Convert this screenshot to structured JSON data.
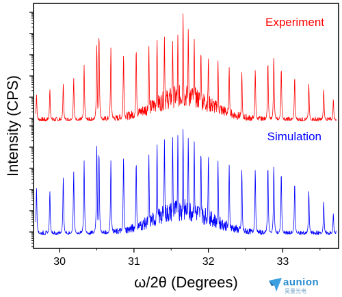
{
  "chart_data": {
    "type": "line",
    "xlabel": "ω/2θ (Degrees)",
    "ylabel": "Intensity (CPS)",
    "xlim": [
      29.65,
      33.75
    ],
    "x_ticks": [
      30,
      31,
      32,
      33
    ],
    "x_tick_labels": [
      "30",
      "31",
      "32",
      "33"
    ],
    "y_scale": "log",
    "y_tick_labels_shown": false,
    "grid": false,
    "legend": "inline labels at top-right of each trace",
    "satellite_peaks_x": [
      29.69,
      29.87,
      30.05,
      30.19,
      30.33,
      30.5,
      30.53,
      30.69,
      30.86,
      31.03,
      31.2,
      31.31,
      31.41,
      31.52,
      31.59,
      31.66,
      31.73,
      31.81,
      31.9,
      32.0,
      32.13,
      32.28,
      32.45,
      32.63,
      32.8,
      32.88,
      32.98,
      33.16,
      33.35,
      33.55,
      33.68
    ],
    "series": [
      {
        "name": "Experiment",
        "color": "#ff0000",
        "main_peak_x": 31.66,
        "peak_relative_heights": [
          0.25,
          0.3,
          0.35,
          0.4,
          0.52,
          0.72,
          0.82,
          0.68,
          0.62,
          0.68,
          0.7,
          0.76,
          0.78,
          0.74,
          0.8,
          1.0,
          0.86,
          0.76,
          0.66,
          0.6,
          0.56,
          0.5,
          0.46,
          0.48,
          0.56,
          0.6,
          0.5,
          0.42,
          0.35,
          0.3,
          0.2
        ]
      },
      {
        "name": "Simulation",
        "color": "#0000ff",
        "main_peak_x": 31.66,
        "peak_relative_heights": [
          0.45,
          0.42,
          0.55,
          0.6,
          0.7,
          0.86,
          0.8,
          0.7,
          0.74,
          0.7,
          0.76,
          0.86,
          0.9,
          0.92,
          0.94,
          1.0,
          0.92,
          0.88,
          0.8,
          0.76,
          0.7,
          0.66,
          0.62,
          0.62,
          0.66,
          0.66,
          0.6,
          0.5,
          0.42,
          0.32,
          0.2
        ]
      }
    ]
  },
  "watermark": {
    "text": "aunion",
    "subtext": "昊量光电",
    "color": "#2a8ccf"
  }
}
